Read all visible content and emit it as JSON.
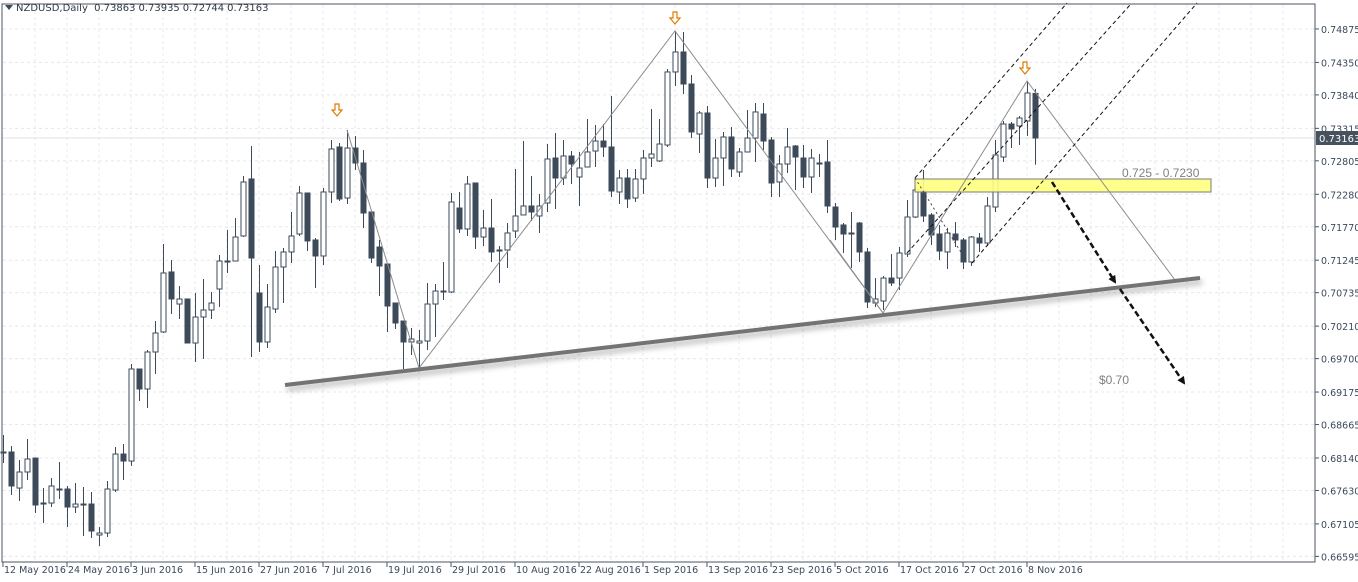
{
  "header": {
    "symbol": "NZDUSD,Daily",
    "open": "0.73863",
    "high": "0.73935",
    "low": "0.72744",
    "close": "0.73163"
  },
  "chart_data": {
    "type": "candlestick",
    "title": "NZDUSD,Daily",
    "ylim": [
      0.66507,
      0.75267
    ],
    "grid": true,
    "y_ticks": [
      "0.74875",
      "0.74350",
      "0.73840",
      "0.73315",
      "0.72805",
      "0.72280",
      "0.71770",
      "0.71245",
      "0.70735",
      "0.70210",
      "0.69700",
      "0.69175",
      "0.68665",
      "0.68140",
      "0.67630",
      "0.67105",
      "0.66595"
    ],
    "x_ticks": [
      "12 May 2016",
      "24 May 2016",
      "3 Jun 2016",
      "15 Jun 2016",
      "27 Jun 2016",
      "7 Jul 2016",
      "19 Jul 2016",
      "29 Jul 2016",
      "10 Aug 2016",
      "22 Aug 2016",
      "1 Sep 2016",
      "13 Sep 2016",
      "23 Sep 2016",
      "5 Oct 2016",
      "17 Oct 2016",
      "27 Oct 2016",
      "8 Nov 2016"
    ],
    "current_price": "0.73163",
    "ohlc": [
      [
        0.68218,
        0.68501,
        0.68061,
        0.68234
      ],
      [
        0.68234,
        0.68328,
        0.67559,
        0.677
      ],
      [
        0.67668,
        0.68108,
        0.67464,
        0.6792
      ],
      [
        0.6792,
        0.68438,
        0.67794,
        0.68124
      ],
      [
        0.68139,
        0.68139,
        0.67276,
        0.67402
      ],
      [
        0.67433,
        0.67668,
        0.67119,
        0.67417
      ],
      [
        0.67433,
        0.67825,
        0.6737,
        0.677
      ],
      [
        0.67653,
        0.68077,
        0.67496,
        0.67637
      ],
      [
        0.67653,
        0.677,
        0.67056,
        0.6737
      ],
      [
        0.6737,
        0.67747,
        0.67276,
        0.67417
      ],
      [
        0.67417,
        0.67684,
        0.66915,
        0.67402
      ],
      [
        0.67417,
        0.67606,
        0.66883,
        0.66993
      ],
      [
        0.66931,
        0.67056,
        0.66758,
        0.66962
      ],
      [
        0.66962,
        0.67778,
        0.66899,
        0.67653
      ],
      [
        0.67637,
        0.68312,
        0.67606,
        0.68202
      ],
      [
        0.68202,
        0.68359,
        0.67794,
        0.68092
      ],
      [
        0.68092,
        0.69615,
        0.68014,
        0.69537
      ],
      [
        0.69537,
        0.69537,
        0.69034,
        0.69223
      ],
      [
        0.69223,
        0.69835,
        0.68924,
        0.69804
      ],
      [
        0.69804,
        0.7029,
        0.69458,
        0.70102
      ],
      [
        0.70118,
        0.71499,
        0.70102,
        0.71044
      ],
      [
        0.7106,
        0.71248,
        0.704,
        0.70636
      ],
      [
        0.70557,
        0.7084,
        0.70322,
        0.70636
      ],
      [
        0.70636,
        0.70636,
        0.69945,
        0.69945
      ],
      [
        0.69945,
        0.7073,
        0.69647,
        0.70353
      ],
      [
        0.70353,
        0.7095,
        0.69694,
        0.70463
      ],
      [
        0.70463,
        0.70746,
        0.70322,
        0.70573
      ],
      [
        0.70793,
        0.71327,
        0.7051,
        0.71232
      ],
      [
        0.71232,
        0.71719,
        0.71044,
        0.71217
      ],
      [
        0.71232,
        0.71907,
        0.71232,
        0.71609
      ],
      [
        0.71625,
        0.72567,
        0.71609,
        0.72473
      ],
      [
        0.7252,
        0.73038,
        0.69725,
        0.71279
      ],
      [
        0.7073,
        0.7117,
        0.69804,
        0.69961
      ],
      [
        0.69961,
        0.70871,
        0.69866,
        0.7051
      ],
      [
        0.70479,
        0.71389,
        0.70416,
        0.71138
      ],
      [
        0.71138,
        0.71436,
        0.70573,
        0.71374
      ],
      [
        0.71374,
        0.72002,
        0.71201,
        0.71625
      ],
      [
        0.71656,
        0.7241,
        0.71625,
        0.723
      ],
      [
        0.723,
        0.723,
        0.71389,
        0.71547
      ],
      [
        0.71562,
        0.71593,
        0.70808,
        0.71311
      ],
      [
        0.71311,
        0.72378,
        0.7117,
        0.72316
      ],
      [
        0.72316,
        0.73132,
        0.72143,
        0.72991
      ],
      [
        0.73022,
        0.73085,
        0.72174,
        0.72206
      ],
      [
        0.72221,
        0.73289,
        0.72127,
        0.73006
      ],
      [
        0.73006,
        0.73195,
        0.72661,
        0.72771
      ],
      [
        0.72771,
        0.72975,
        0.7175,
        0.71986
      ],
      [
        0.72002,
        0.72002,
        0.71201,
        0.71279
      ],
      [
        0.71452,
        0.71562,
        0.70683,
        0.71154
      ],
      [
        0.71185,
        0.71185,
        0.70118,
        0.70526
      ],
      [
        0.70573,
        0.70573,
        0.70165,
        0.70259
      ],
      [
        0.7029,
        0.7029,
        0.69537,
        0.69961
      ],
      [
        0.69961,
        0.7018,
        0.69757,
        0.70008
      ],
      [
        0.69945,
        0.70149,
        0.69552,
        0.69976
      ],
      [
        0.69976,
        0.70887,
        0.69835,
        0.70557
      ],
      [
        0.70557,
        0.70871,
        0.70039,
        0.70761
      ],
      [
        0.70761,
        0.71217,
        0.7062,
        0.70746
      ],
      [
        0.70746,
        0.723,
        0.7073,
        0.72159
      ],
      [
        0.72064,
        0.72316,
        0.71672,
        0.71735
      ],
      [
        0.71735,
        0.72567,
        0.71625,
        0.72441
      ],
      [
        0.72457,
        0.72457,
        0.71421,
        0.71609
      ],
      [
        0.71609,
        0.72033,
        0.71468,
        0.7175
      ],
      [
        0.7175,
        0.72206,
        0.71217,
        0.71374
      ],
      [
        0.71405,
        0.71468,
        0.70887,
        0.71389
      ],
      [
        0.71405,
        0.71829,
        0.71122,
        0.71672
      ],
      [
        0.71703,
        0.72677,
        0.71593,
        0.71939
      ],
      [
        0.71955,
        0.73116,
        0.71955,
        0.72096
      ],
      [
        0.72096,
        0.72567,
        0.7186,
        0.72002
      ],
      [
        0.71939,
        0.72284,
        0.71672,
        0.72096
      ],
      [
        0.72143,
        0.73069,
        0.72002,
        0.72834
      ],
      [
        0.72849,
        0.73242,
        0.72049,
        0.72535
      ],
      [
        0.72535,
        0.73132,
        0.72426,
        0.72881
      ],
      [
        0.72881,
        0.72959,
        0.72441,
        0.72755
      ],
      [
        0.72551,
        0.72944,
        0.72096,
        0.72692
      ],
      [
        0.72708,
        0.73462,
        0.72708,
        0.72944
      ],
      [
        0.72959,
        0.73368,
        0.72708,
        0.73116
      ],
      [
        0.73116,
        0.73383,
        0.72865,
        0.73022
      ],
      [
        0.73022,
        0.73823,
        0.72237,
        0.72331
      ],
      [
        0.72316,
        0.72661,
        0.72127,
        0.72535
      ],
      [
        0.72535,
        0.72677,
        0.72064,
        0.72206
      ],
      [
        0.72221,
        0.72677,
        0.72159,
        0.7252
      ],
      [
        0.7252,
        0.72975,
        0.72284,
        0.72849
      ],
      [
        0.72849,
        0.73619,
        0.72708,
        0.72912
      ],
      [
        0.72803,
        0.73462,
        0.72787,
        0.73069
      ],
      [
        0.73053,
        0.74247,
        0.73022,
        0.742
      ],
      [
        0.742,
        0.74843,
        0.7398,
        0.74514
      ],
      [
        0.74514,
        0.74828,
        0.73854,
        0.74011
      ],
      [
        0.74011,
        0.74153,
        0.73163,
        0.73258
      ],
      [
        0.73226,
        0.73587,
        0.72928,
        0.73556
      ],
      [
        0.73556,
        0.73666,
        0.72378,
        0.72535
      ],
      [
        0.72535,
        0.73148,
        0.72394,
        0.72849
      ],
      [
        0.72849,
        0.73258,
        0.7241,
        0.73179
      ],
      [
        0.73179,
        0.73336,
        0.72551,
        0.72677
      ],
      [
        0.7263,
        0.73006,
        0.72551,
        0.72944
      ],
      [
        0.72944,
        0.73603,
        0.72944,
        0.73163
      ],
      [
        0.73163,
        0.73713,
        0.72787,
        0.73572
      ],
      [
        0.7354,
        0.73713,
        0.72975,
        0.73116
      ],
      [
        0.73132,
        0.73179,
        0.72237,
        0.72457
      ],
      [
        0.72473,
        0.72897,
        0.72237,
        0.72755
      ],
      [
        0.72755,
        0.7332,
        0.72614,
        0.73022
      ],
      [
        0.73038,
        0.73053,
        0.72347,
        0.72865
      ],
      [
        0.72849,
        0.73053,
        0.72378,
        0.72551
      ],
      [
        0.72551,
        0.72991,
        0.723,
        0.72849
      ],
      [
        0.72771,
        0.72912,
        0.72551,
        0.72755
      ],
      [
        0.72787,
        0.73132,
        0.71986,
        0.72096
      ],
      [
        0.7208,
        0.72143,
        0.71562,
        0.71766
      ],
      [
        0.71798,
        0.71829,
        0.71358,
        0.71656
      ],
      [
        0.71672,
        0.72002,
        0.71122,
        0.71656
      ],
      [
        0.71829,
        0.71845,
        0.71217,
        0.71374
      ],
      [
        0.71374,
        0.71436,
        0.70494,
        0.70589
      ],
      [
        0.70573,
        0.70965,
        0.7051,
        0.70636
      ],
      [
        0.70604,
        0.70997,
        0.70463,
        0.70965
      ],
      [
        0.70965,
        0.71342,
        0.7084,
        0.70887
      ],
      [
        0.70965,
        0.71452,
        0.70777,
        0.71358
      ],
      [
        0.71342,
        0.7219,
        0.71295,
        0.71923
      ],
      [
        0.71923,
        0.72394,
        0.71907,
        0.72347
      ],
      [
        0.72331,
        0.72661,
        0.71845,
        0.71939
      ],
      [
        0.71955,
        0.71986,
        0.71484,
        0.71641
      ],
      [
        0.71656,
        0.71798,
        0.71248,
        0.71389
      ],
      [
        0.71374,
        0.7175,
        0.71107,
        0.71672
      ],
      [
        0.71656,
        0.71845,
        0.71452,
        0.71562
      ],
      [
        0.71562,
        0.71593,
        0.71107,
        0.71217
      ],
      [
        0.71217,
        0.71625,
        0.71154,
        0.71609
      ],
      [
        0.71593,
        0.71672,
        0.71374,
        0.71515
      ],
      [
        0.71515,
        0.72237,
        0.71468,
        0.72096
      ],
      [
        0.7208,
        0.73132,
        0.72002,
        0.72897
      ],
      [
        0.72865,
        0.7343,
        0.72787,
        0.73383
      ],
      [
        0.73383,
        0.73415,
        0.73006,
        0.73305
      ],
      [
        0.73352,
        0.73509,
        0.73053,
        0.73477
      ],
      [
        0.7343,
        0.74058,
        0.73195,
        0.7387
      ],
      [
        0.73863,
        0.73935,
        0.72744,
        0.73163
      ]
    ],
    "annotations": {
      "zone_label": "0.725 - 0.7230",
      "target_label": "$0.70"
    }
  },
  "colors": {
    "candle": "#3d4a5a",
    "zone_fill": "#ffff80",
    "trendline": "#777777",
    "marker_arrow": "#e07b00",
    "price_box": "#46525e"
  },
  "icons": {
    "header": "triangle-down-icon",
    "fractal_marker": "down-arrow-icon"
  }
}
